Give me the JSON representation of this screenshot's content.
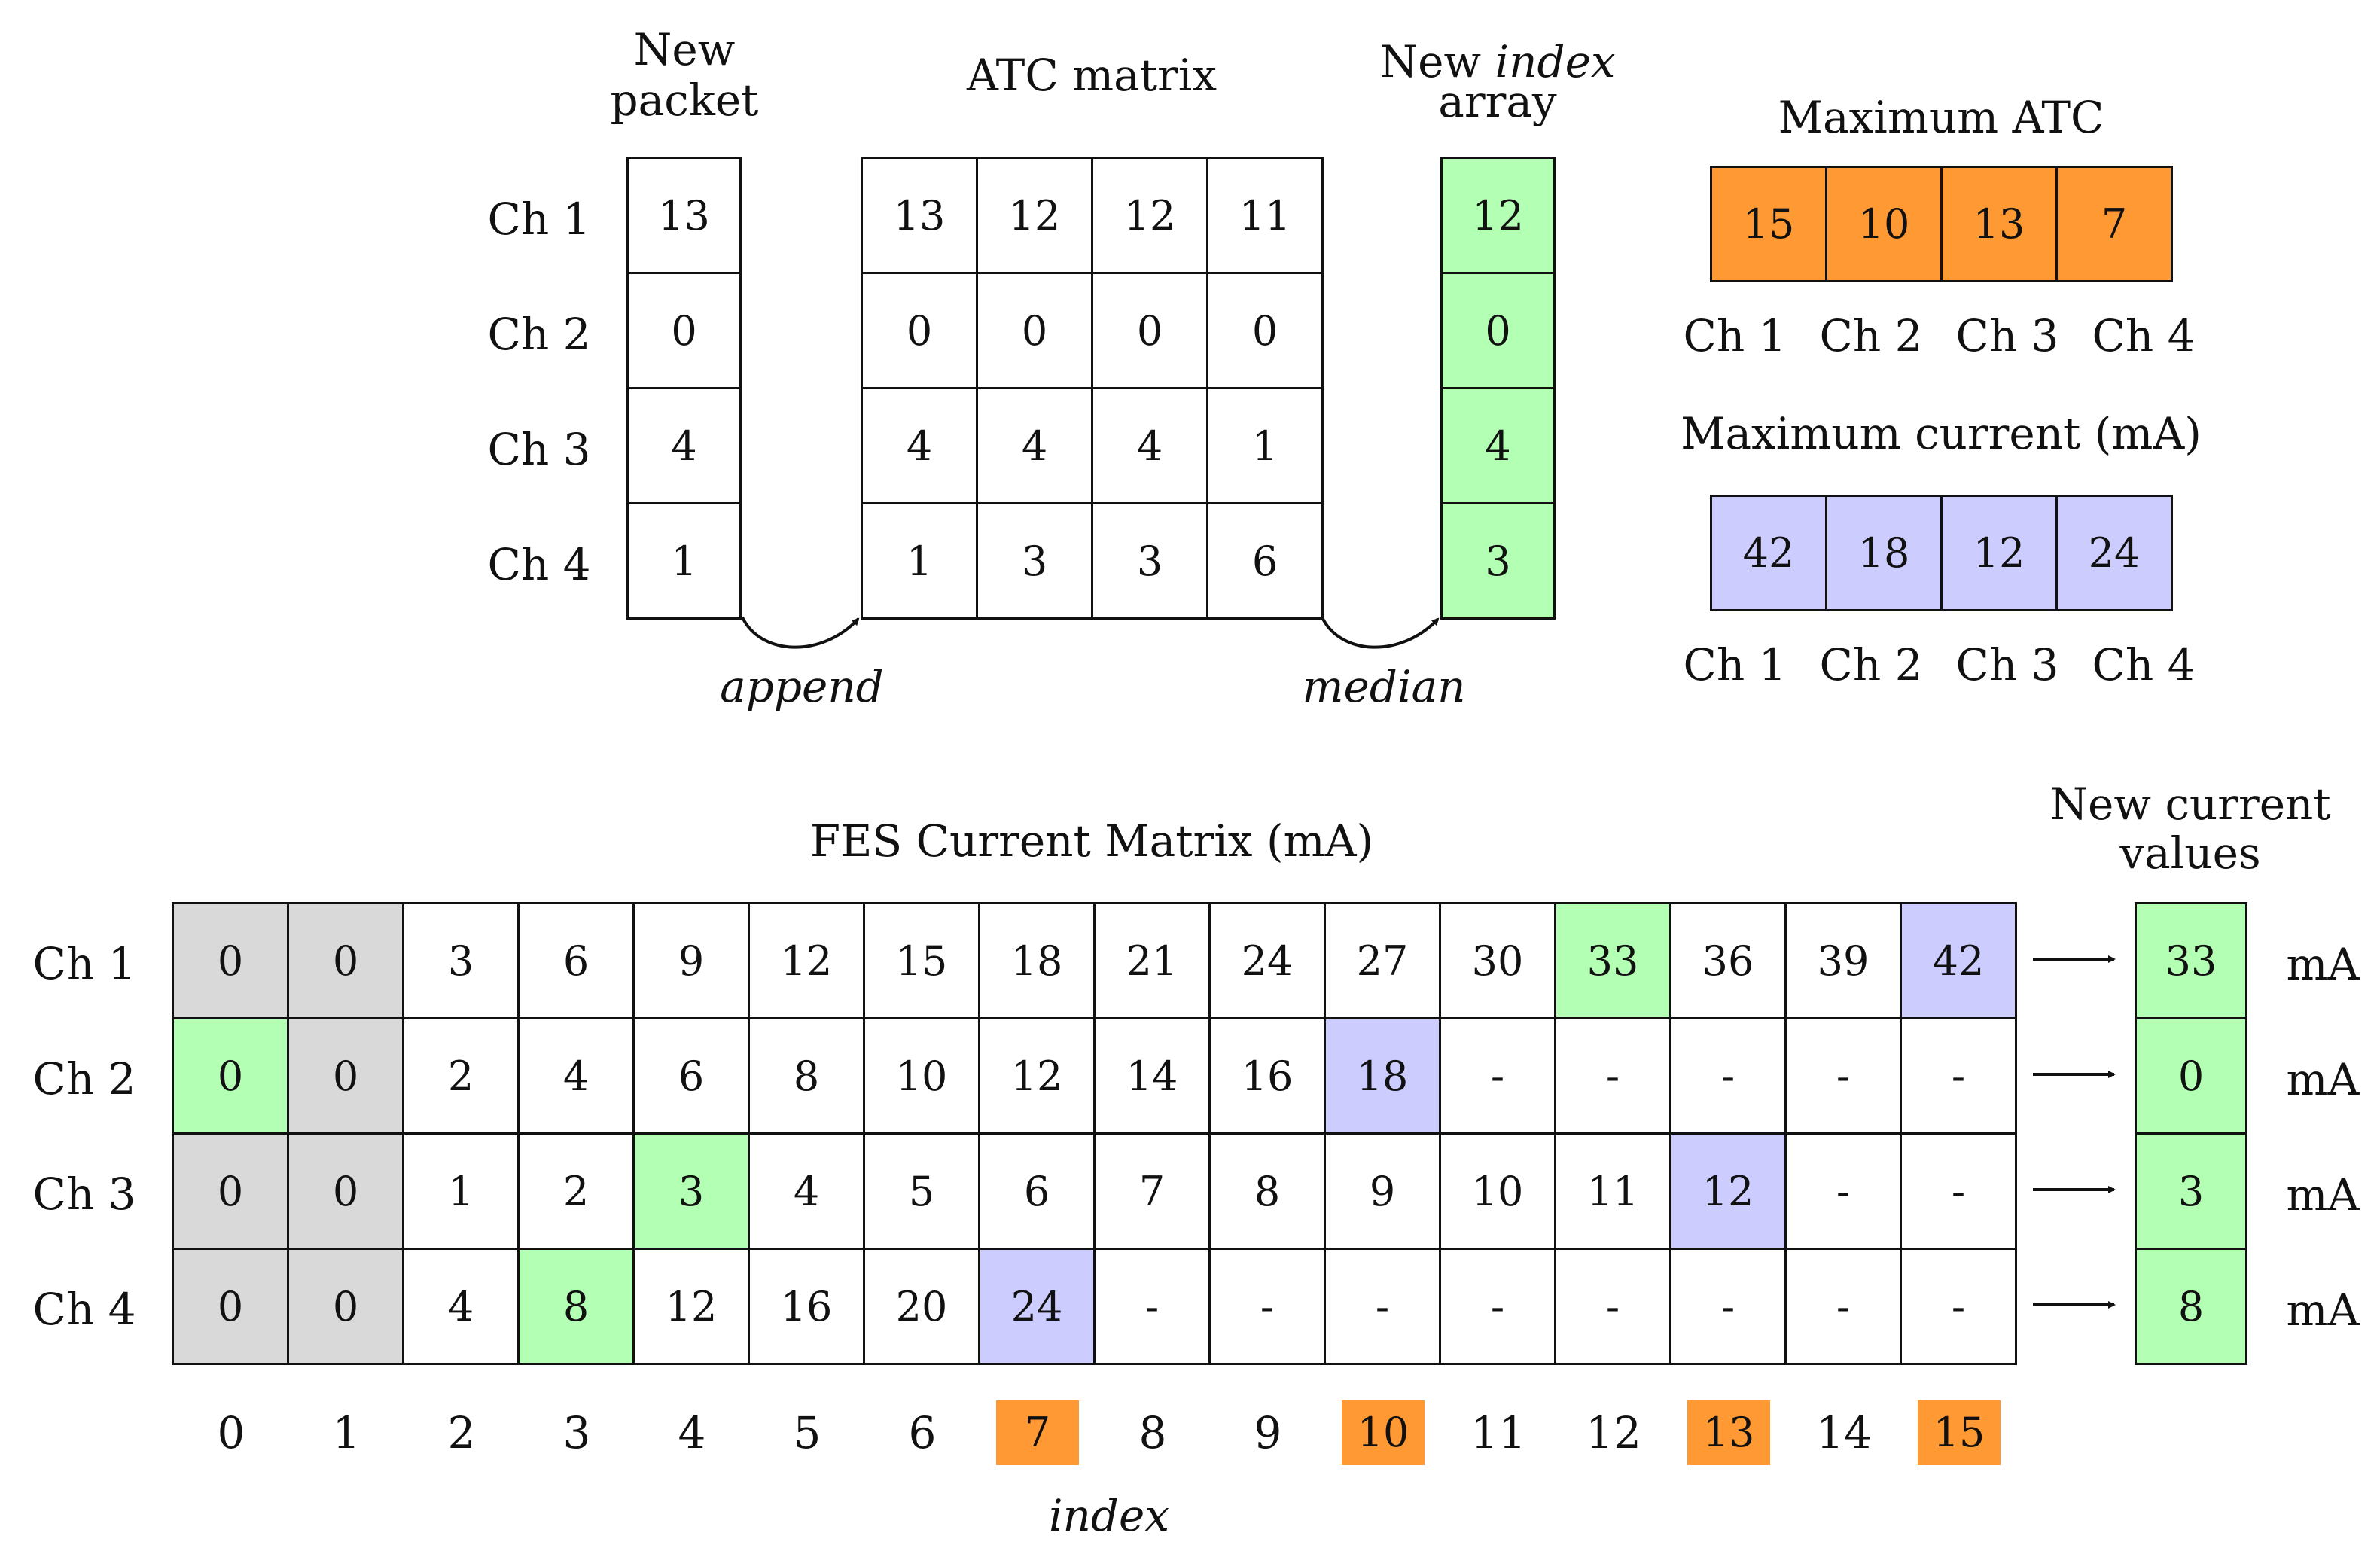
{
  "colors": {
    "gray": "#d9d9d9",
    "green": "#b3ffb3",
    "violet": "#ccccff",
    "orange": "#ff9933",
    "white": "#ffffff"
  },
  "top": {
    "new_packet": {
      "label_line1": "New",
      "label_line2": "packet",
      "values": [
        "13",
        "0",
        "4",
        "1"
      ]
    },
    "row_labels": [
      "Ch 1",
      "Ch 2",
      "Ch 3",
      "Ch 4"
    ],
    "atc_matrix": {
      "title": "ATC matrix",
      "rows": [
        [
          "13",
          "12",
          "12",
          "11"
        ],
        [
          "0",
          "0",
          "0",
          "0"
        ],
        [
          "4",
          "4",
          "4",
          "1"
        ],
        [
          "1",
          "3",
          "3",
          "6"
        ]
      ]
    },
    "new_index": {
      "label_new": "New",
      "label_index": "index",
      "label_array": "array",
      "values": [
        "12",
        "0",
        "4",
        "3"
      ]
    },
    "append_label": "append",
    "median_label": "median",
    "max_atc": {
      "title": "Maximum ATC",
      "values": [
        "15",
        "10",
        "13",
        "7"
      ],
      "channels": [
        "Ch 1",
        "Ch 2",
        "Ch 3",
        "Ch 4"
      ]
    },
    "max_current": {
      "title": "Maximum current (mA)",
      "values": [
        "42",
        "18",
        "12",
        "24"
      ],
      "channels": [
        "Ch 1",
        "Ch 2",
        "Ch 3",
        "Ch 4"
      ]
    }
  },
  "fes": {
    "title": "FES Current Matrix (mA)",
    "row_labels": [
      "Ch 1",
      "Ch 2",
      "Ch 3",
      "Ch 4"
    ],
    "rows": [
      [
        "0",
        "0",
        "3",
        "6",
        "9",
        "12",
        "15",
        "18",
        "21",
        "24",
        "27",
        "30",
        "33",
        "36",
        "39",
        "42"
      ],
      [
        "0",
        "0",
        "2",
        "4",
        "6",
        "8",
        "10",
        "12",
        "14",
        "16",
        "18",
        "-",
        "-",
        "-",
        "-",
        "-"
      ],
      [
        "0",
        "0",
        "1",
        "2",
        "3",
        "4",
        "5",
        "6",
        "7",
        "8",
        "9",
        "10",
        "11",
        "12",
        "-",
        "-"
      ],
      [
        "0",
        "0",
        "4",
        "8",
        "12",
        "16",
        "20",
        "24",
        "-",
        "-",
        "-",
        "-",
        "-",
        "-",
        "-",
        "-"
      ]
    ],
    "fills": [
      [
        "gray",
        "gray",
        "white",
        "white",
        "white",
        "white",
        "white",
        "white",
        "white",
        "white",
        "white",
        "white",
        "green",
        "white",
        "white",
        "violet"
      ],
      [
        "green",
        "gray",
        "white",
        "white",
        "white",
        "white",
        "white",
        "white",
        "white",
        "white",
        "violet",
        "white",
        "white",
        "white",
        "white",
        "white"
      ],
      [
        "gray",
        "gray",
        "white",
        "white",
        "green",
        "white",
        "white",
        "white",
        "white",
        "white",
        "white",
        "white",
        "white",
        "violet",
        "white",
        "white"
      ],
      [
        "gray",
        "gray",
        "white",
        "green",
        "white",
        "white",
        "white",
        "violet",
        "white",
        "white",
        "white",
        "white",
        "white",
        "white",
        "white",
        "white"
      ]
    ],
    "index_values": [
      "0",
      "1",
      "2",
      "3",
      "4",
      "5",
      "6",
      "7",
      "8",
      "9",
      "10",
      "11",
      "12",
      "13",
      "14",
      "15"
    ],
    "index_highlighted": [
      7,
      10,
      13,
      15
    ],
    "index_label": "index",
    "new_current": {
      "title_line1": "New current",
      "title_line2": "values",
      "values": [
        "33",
        "0",
        "3",
        "8"
      ],
      "unit": "mA"
    }
  }
}
